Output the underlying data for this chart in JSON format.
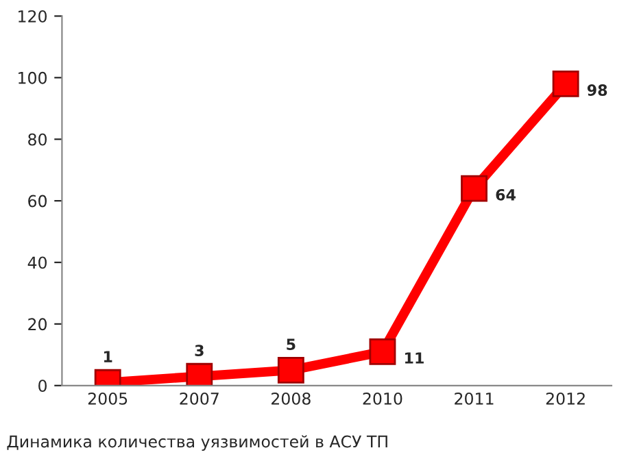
{
  "chart_data": {
    "type": "line",
    "categories": [
      "2005",
      "2007",
      "2008",
      "2010",
      "2011",
      "2012"
    ],
    "series": [
      {
        "color": "#ff0000",
        "values": [
          1,
          3,
          5,
          11,
          64,
          98
        ]
      }
    ],
    "ylim": [
      0,
      120
    ],
    "yticks": [
      0,
      20,
      40,
      60,
      80,
      100,
      120
    ],
    "marker": "square",
    "line_style": "solid",
    "data_labels": true,
    "grid": false,
    "legend": false,
    "annotations": [
      "Динамика количества уязвимостей в АСУ ТП"
    ]
  }
}
